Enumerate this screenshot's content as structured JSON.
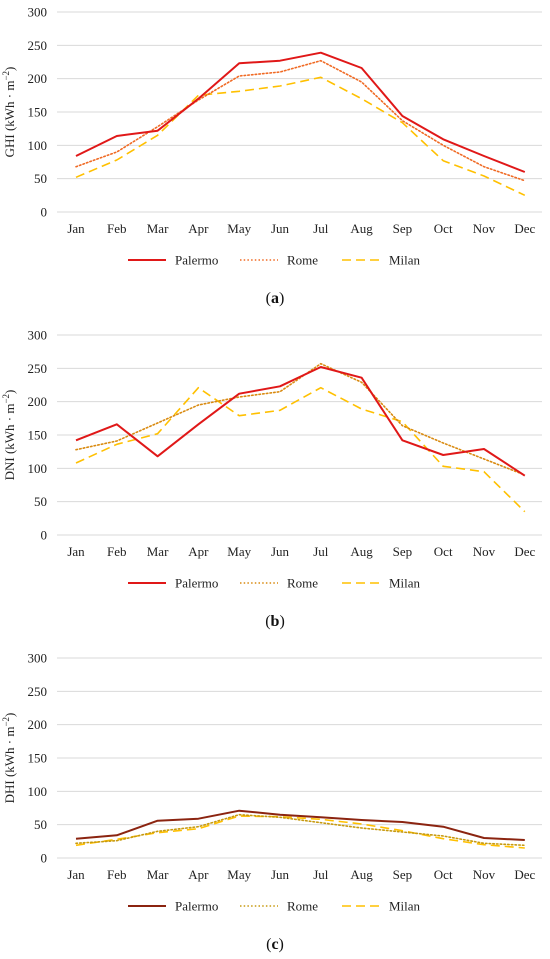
{
  "chart_data": [
    {
      "type": "line",
      "panel": "a",
      "ylabel": "GHI (kWh · m",
      "ylabel_sup": "−2",
      "ylabel_suffix": ")",
      "ylim": [
        0,
        300
      ],
      "yticks": [
        "0",
        "50",
        "100",
        "150",
        "200",
        "250",
        "300"
      ],
      "grid": true,
      "legend": "bottom",
      "categories": [
        "Jan",
        "Feb",
        "Mar",
        "Apr",
        "May",
        "Jun",
        "Jul",
        "Aug",
        "Sep",
        "Oct",
        "Nov",
        "Dec"
      ],
      "series": [
        {
          "name": "Palermo",
          "style": "solid",
          "color": "#e01818",
          "values": [
            84,
            114,
            122,
            170,
            223,
            227,
            239,
            216,
            144,
            109,
            84,
            60
          ]
        },
        {
          "name": "Rome",
          "style": "dotted",
          "color": "#f06a24",
          "values": [
            68,
            90,
            128,
            168,
            204,
            210,
            227,
            195,
            137,
            100,
            68,
            47
          ]
        },
        {
          "name": "Milan",
          "style": "dashed",
          "color": "#ffc000",
          "values": [
            52,
            78,
            115,
            175,
            181,
            189,
            202,
            170,
            134,
            77,
            54,
            25
          ]
        }
      ],
      "caption": "a"
    },
    {
      "type": "line",
      "panel": "b",
      "ylabel": "DNI (kWh · m",
      "ylabel_sup": "−2",
      "ylabel_suffix": ")",
      "ylim": [
        0,
        300
      ],
      "yticks": [
        "0",
        "50",
        "100",
        "150",
        "200",
        "250",
        "300"
      ],
      "grid": true,
      "legend": "bottom",
      "categories": [
        "Jan",
        "Feb",
        "Mar",
        "Apr",
        "May",
        "Jun",
        "Jul",
        "Aug",
        "Sep",
        "Oct",
        "Nov",
        "Dec"
      ],
      "series": [
        {
          "name": "Palermo",
          "style": "solid",
          "color": "#e01818",
          "values": [
            142,
            166,
            118,
            166,
            212,
            223,
            252,
            236,
            142,
            120,
            129,
            89
          ]
        },
        {
          "name": "Rome",
          "style": "dotted",
          "color": "#d98a10",
          "values": [
            128,
            141,
            168,
            195,
            207,
            215,
            257,
            229,
            164,
            138,
            114,
            90
          ]
        },
        {
          "name": "Milan",
          "style": "dashed",
          "color": "#ffc000",
          "values": [
            108,
            136,
            152,
            221,
            179,
            187,
            221,
            189,
            170,
            103,
            95,
            35
          ]
        }
      ],
      "caption": "b"
    },
    {
      "type": "line",
      "panel": "c",
      "ylabel": "DHI (kWh · m",
      "ylabel_sup": "−2",
      "ylabel_suffix": ")",
      "ylim": [
        0,
        300
      ],
      "yticks": [
        "0",
        "50",
        "100",
        "150",
        "200",
        "250",
        "300"
      ],
      "grid": true,
      "legend": "bottom",
      "categories": [
        "Jan",
        "Feb",
        "Mar",
        "Apr",
        "May",
        "Jun",
        "Jul",
        "Aug",
        "Sep",
        "Oct",
        "Nov",
        "Dec"
      ],
      "series": [
        {
          "name": "Palermo",
          "style": "solid",
          "color": "#8b2410",
          "values": [
            29,
            34,
            56,
            59,
            71,
            65,
            61,
            57,
            54,
            47,
            30,
            27
          ]
        },
        {
          "name": "Rome",
          "style": "dotted",
          "color": "#c79a10",
          "values": [
            22,
            26,
            40,
            47,
            65,
            61,
            53,
            45,
            39,
            33,
            22,
            19
          ]
        },
        {
          "name": "Milan",
          "style": "dashed",
          "color": "#ffc000",
          "values": [
            19,
            28,
            38,
            44,
            63,
            62,
            58,
            51,
            41,
            29,
            20,
            15
          ]
        }
      ],
      "caption": "c"
    }
  ]
}
